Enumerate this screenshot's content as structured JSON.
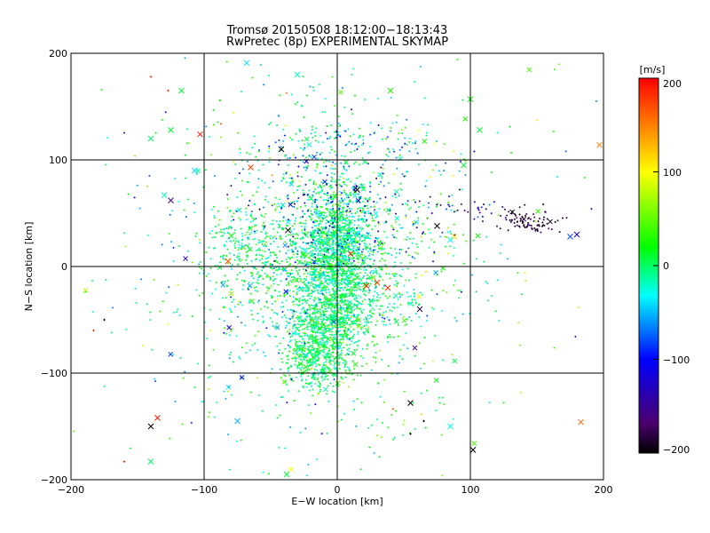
{
  "chart_data": {
    "type": "scatter",
    "title": "Tromsø 20150508 18:12:00−18:13:43",
    "subtitle": "RwPretec (8p) EXPERIMENTAL SKYMAP",
    "xlabel": "E−W location [km]",
    "ylabel": "N−S location [km]",
    "xlim": [
      -200,
      200
    ],
    "ylim": [
      -200,
      200
    ],
    "xticks": [
      "−200",
      "−100",
      "0",
      "100",
      "200"
    ],
    "yticks": [
      "−200",
      "−100",
      "0",
      "100",
      "200"
    ],
    "grid": true,
    "colorbar": {
      "label": "[m/s]",
      "range": [
        -200,
        200
      ],
      "ticks": [
        "200",
        "100",
        "0",
        "−100",
        "−200"
      ],
      "colormap": [
        "#000000",
        "#4b006e",
        "#0000ff",
        "#00ffff",
        "#00ff00",
        "#ffff00",
        "#ff0000"
      ]
    },
    "clusters": [
      {
        "x": 0,
        "y": 20,
        "sx": 12,
        "sy": 30,
        "n": 1100,
        "v": -5,
        "sv": 25
      },
      {
        "x": -5,
        "y": -20,
        "sx": 28,
        "sy": 25,
        "n": 700,
        "v": 0,
        "sv": 22
      },
      {
        "x": -15,
        "y": -85,
        "sx": 12,
        "sy": 15,
        "n": 500,
        "v": 5,
        "sv": 18
      },
      {
        "x": -5,
        "y": -50,
        "sx": 12,
        "sy": 12,
        "n": 350,
        "v": 0,
        "sv": 18
      },
      {
        "x": 0,
        "y": 0,
        "sx": 50,
        "sy": 70,
        "n": 700,
        "v": 0,
        "sv": 40
      },
      {
        "x": -60,
        "y": 20,
        "sx": 20,
        "sy": 20,
        "n": 250,
        "v": 0,
        "sv": 25
      },
      {
        "x": -30,
        "y": 10,
        "sx": 60,
        "sy": 85,
        "n": 500,
        "v": -10,
        "sv": 45
      },
      {
        "x": 5,
        "y": 50,
        "sx": 35,
        "sy": 25,
        "n": 220,
        "v": -80,
        "sv": 55
      },
      {
        "x": 0,
        "y": 115,
        "sx": 40,
        "sy": 12,
        "n": 120,
        "v": -40,
        "sv": 40
      },
      {
        "x": 145,
        "y": 42,
        "sx": 12,
        "sy": 6,
        "n": 90,
        "v": -185,
        "sv": 12
      },
      {
        "x": 100,
        "y": 55,
        "sx": 15,
        "sy": 5,
        "n": 30,
        "v": -120,
        "sv": 40
      },
      {
        "x": 0,
        "y": 0,
        "sx": 110,
        "sy": 110,
        "n": 200,
        "v": 0,
        "sv": 60
      }
    ],
    "markers": [
      {
        "x": -140,
        "y": 178,
        "v": 180,
        "m": "+"
      },
      {
        "x": -127,
        "y": 165,
        "v": 180,
        "m": "+"
      },
      {
        "x": -103,
        "y": 124,
        "v": 190,
        "m": "x"
      },
      {
        "x": -65,
        "y": 93,
        "v": 175,
        "m": "x"
      },
      {
        "x": -42,
        "y": 110,
        "v": -200,
        "m": "x"
      },
      {
        "x": -125,
        "y": 62,
        "v": -160,
        "m": "x"
      },
      {
        "x": -82,
        "y": 5,
        "v": 170,
        "m": "x"
      },
      {
        "x": -37,
        "y": 34,
        "v": -200,
        "m": "x"
      },
      {
        "x": 15,
        "y": 72,
        "v": -200,
        "m": "x"
      },
      {
        "x": 22,
        "y": -18,
        "v": 190,
        "m": "x"
      },
      {
        "x": 38,
        "y": -20,
        "v": 180,
        "m": "x"
      },
      {
        "x": 62,
        "y": -40,
        "v": -180,
        "m": "x"
      },
      {
        "x": 75,
        "y": 38,
        "v": -200,
        "m": "x"
      },
      {
        "x": 88,
        "y": 28,
        "v": 110,
        "m": "x"
      },
      {
        "x": 55,
        "y": -128,
        "v": -200,
        "m": "x"
      },
      {
        "x": 102,
        "y": -172,
        "v": -200,
        "m": "x"
      },
      {
        "x": -140,
        "y": -150,
        "v": -200,
        "m": "x"
      },
      {
        "x": -135,
        "y": -142,
        "v": 190,
        "m": "x"
      },
      {
        "x": -160,
        "y": -183,
        "v": 190,
        "m": "+"
      },
      {
        "x": -175,
        "y": -50,
        "v": -200,
        "m": "+"
      },
      {
        "x": -183,
        "y": -60,
        "v": 190,
        "m": "+"
      },
      {
        "x": 183,
        "y": -146,
        "v": 160,
        "m": "x"
      },
      {
        "x": 197,
        "y": 114,
        "v": 150,
        "m": "x"
      },
      {
        "x": 10,
        "y": 12,
        "v": 185,
        "m": "x"
      },
      {
        "x": 30,
        "y": -15,
        "v": 180,
        "m": "x"
      },
      {
        "x": 65,
        "y": -145,
        "v": -200,
        "m": "+"
      },
      {
        "x": 55,
        "y": -157,
        "v": -200,
        "m": "+"
      },
      {
        "x": -140,
        "y": -183,
        "v": 0,
        "m": "x"
      },
      {
        "x": -117,
        "y": 165,
        "v": 10,
        "m": "x"
      },
      {
        "x": -68,
        "y": 191,
        "v": -40,
        "m": "x"
      },
      {
        "x": -30,
        "y": 180,
        "v": -20,
        "m": "x"
      },
      {
        "x": 40,
        "y": 165,
        "v": 30,
        "m": "x"
      },
      {
        "x": 100,
        "y": 157,
        "v": 20,
        "m": "x"
      },
      {
        "x": 107,
        "y": 128,
        "v": 10,
        "m": "x"
      },
      {
        "x": -140,
        "y": 120,
        "v": 0,
        "m": "x"
      },
      {
        "x": -125,
        "y": 128,
        "v": 10,
        "m": "x"
      },
      {
        "x": -130,
        "y": 67,
        "v": -20,
        "m": "x"
      },
      {
        "x": -107,
        "y": 90,
        "v": -40,
        "m": "x"
      },
      {
        "x": 85,
        "y": 25,
        "v": -30,
        "m": "x"
      },
      {
        "x": 95,
        "y": 95,
        "v": 10,
        "m": "x"
      },
      {
        "x": 175,
        "y": 28,
        "v": -80,
        "m": "x"
      },
      {
        "x": 85,
        "y": -150,
        "v": -30,
        "m": "x"
      },
      {
        "x": -38,
        "y": -195,
        "v": 10,
        "m": "x"
      },
      {
        "x": -75,
        "y": -145,
        "v": -50,
        "m": "x"
      },
      {
        "x": 180,
        "y": 30,
        "v": -120,
        "m": "x"
      }
    ]
  }
}
